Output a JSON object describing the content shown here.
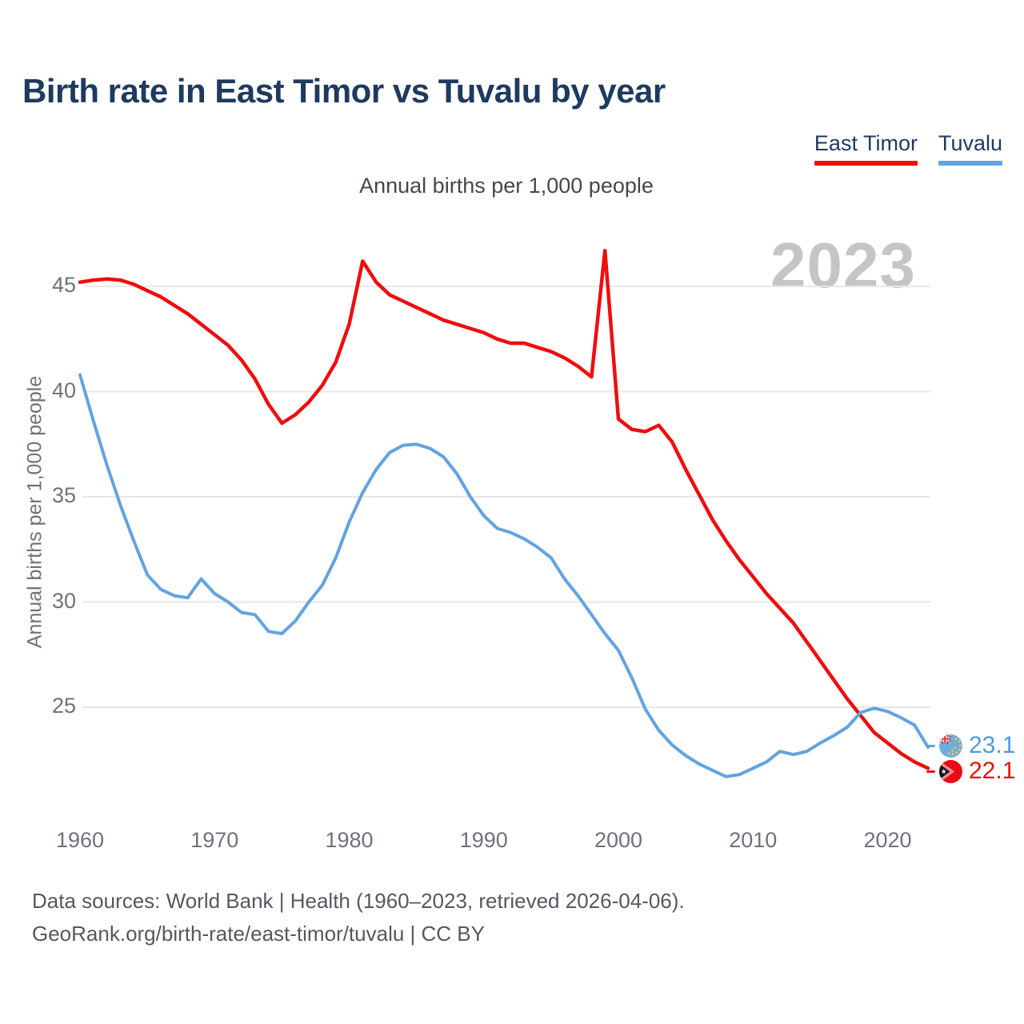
{
  "header": {
    "title": "Birth rate in East Timor vs Tuvalu by year"
  },
  "subtitle": "Annual births per 1,000 people",
  "watermark_year": "2023",
  "legend": {
    "items": [
      {
        "label": "East Timor",
        "color": "#ee0e0e"
      },
      {
        "label": "Tuvalu",
        "color": "#63a3e0"
      }
    ]
  },
  "y_axis": {
    "label": "Annual births per 1,000 people",
    "ticks": [
      45,
      40,
      35,
      30,
      25
    ]
  },
  "x_axis": {
    "ticks": [
      1960,
      1970,
      1980,
      1990,
      2000,
      2010,
      2020
    ]
  },
  "end_labels": [
    {
      "series": "Tuvalu",
      "value": "23.1",
      "color": "#4f9ade",
      "flag": "tuvalu-flag"
    },
    {
      "series": "East Timor",
      "value": "22.1",
      "color": "#ee0e0e",
      "flag": "east-timor-flag"
    }
  ],
  "footer": {
    "line1": "Data sources: World Bank | Health (1960–2023, retrieved 2026-04-06).",
    "line2": "GeoRank.org/birth-rate/east-timor/tuvalu | CC BY"
  },
  "theme": {
    "title_color": "#1e3a5f",
    "grid_color": "#e7e7ea",
    "red": "#ee0e0e",
    "blue": "#63a3e0",
    "tick_color": "#6f727b",
    "watermark_color": "#c5c5c7"
  },
  "chart_data": {
    "type": "line",
    "title": "Birth rate in East Timor vs Tuvalu by year",
    "xlabel": "Year",
    "ylabel": "Annual births per 1,000 people",
    "xlim": [
      1960,
      2023
    ],
    "ylim": [
      20.5,
      47.5
    ],
    "grid": "horizontal",
    "legend_position": "top-right",
    "x": [
      1960,
      1961,
      1962,
      1963,
      1964,
      1965,
      1966,
      1967,
      1968,
      1969,
      1970,
      1971,
      1972,
      1973,
      1974,
      1975,
      1976,
      1977,
      1978,
      1979,
      1980,
      1981,
      1982,
      1983,
      1984,
      1985,
      1986,
      1987,
      1988,
      1989,
      1990,
      1991,
      1992,
      1993,
      1994,
      1995,
      1996,
      1997,
      1998,
      1999,
      2000,
      2001,
      2002,
      2003,
      2004,
      2005,
      2006,
      2007,
      2008,
      2009,
      2010,
      2011,
      2012,
      2013,
      2014,
      2015,
      2016,
      2017,
      2018,
      2019,
      2020,
      2021,
      2022,
      2023
    ],
    "series": [
      {
        "name": "East Timor",
        "color": "#ee0e0e",
        "width": 4.5,
        "final_label": "22.1",
        "values": [
          45.2,
          45.3,
          45.35,
          45.3,
          45.1,
          44.8,
          44.5,
          44.1,
          43.7,
          43.2,
          42.7,
          42.2,
          41.5,
          40.6,
          39.4,
          38.5,
          38.9,
          39.5,
          40.3,
          41.4,
          43.2,
          46.2,
          45.2,
          44.6,
          44.3,
          44.0,
          43.7,
          43.4,
          43.2,
          43.0,
          42.8,
          42.5,
          42.3,
          42.3,
          42.1,
          41.9,
          41.6,
          41.2,
          40.7,
          46.7,
          38.7,
          38.2,
          38.1,
          38.4,
          37.6,
          36.3,
          35.1,
          33.9,
          32.9,
          32.0,
          31.2,
          30.4,
          29.7,
          29.0,
          28.1,
          27.2,
          26.3,
          25.4,
          24.6,
          23.8,
          23.3,
          22.8,
          22.4,
          22.1
        ]
      },
      {
        "name": "Tuvalu",
        "color": "#63a3e0",
        "width": 4,
        "final_label": "23.1",
        "values": [
          40.8,
          38.6,
          36.5,
          34.6,
          32.9,
          31.3,
          30.6,
          30.3,
          30.2,
          31.1,
          30.4,
          30.0,
          29.5,
          29.4,
          28.6,
          28.5,
          29.1,
          30.0,
          30.8,
          32.1,
          33.8,
          35.2,
          36.3,
          37.1,
          37.45,
          37.5,
          37.3,
          36.9,
          36.1,
          35.0,
          34.1,
          33.5,
          33.3,
          33.0,
          32.6,
          32.1,
          31.1,
          30.3,
          29.4,
          28.5,
          27.7,
          26.4,
          24.9,
          23.9,
          23.2,
          22.7,
          22.3,
          22.0,
          21.7,
          21.8,
          22.1,
          22.4,
          22.9,
          22.75,
          22.9,
          23.3,
          23.65,
          24.05,
          24.75,
          24.95,
          24.8,
          24.5,
          24.15,
          23.1
        ]
      }
    ]
  }
}
